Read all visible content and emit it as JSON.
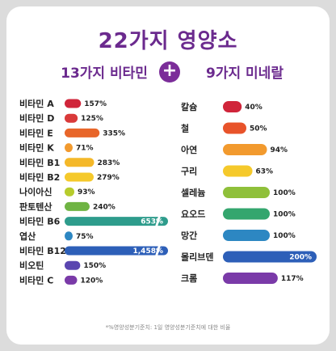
{
  "title": "22가지 영양소",
  "subtitle_left": "13가지 비타민",
  "plus_symbol": "+",
  "subtitle_right": "9가지 미네랄",
  "footnote": "*%영양성분기준치: 1일 영양성분기준치에 대한 비율",
  "chart_data": [
    {
      "type": "bar",
      "orientation": "horizontal",
      "categories": [
        "비타민 A",
        "비타민 D",
        "비타민 E",
        "비타민 K",
        "비타민 B1",
        "비타민 B2",
        "나이아신",
        "판토텐산",
        "비타민 B6",
        "엽산",
        "비타민 B12",
        "비오틴",
        "비타민 C"
      ],
      "values": [
        157,
        125,
        335,
        71,
        283,
        279,
        93,
        240,
        653,
        75,
        1458,
        150,
        120
      ],
      "value_labels": [
        "157%",
        "125%",
        "335%",
        "71%",
        "283%",
        "279%",
        "93%",
        "240%",
        "653%",
        "75%",
        "1,458%",
        "150%",
        "120%"
      ],
      "bar_colors": [
        "#d0253a",
        "#d93a3a",
        "#e8662a",
        "#f29a2e",
        "#f4b829",
        "#f5c92b",
        "#b7cc2c",
        "#6fb443",
        "#2e9c8c",
        "#2d87c2",
        "#2d5fb8",
        "#5a46b0",
        "#7a3aa8"
      ],
      "broken_axis": true,
      "unit": "%"
    },
    {
      "type": "bar",
      "orientation": "horizontal",
      "categories": [
        "칼슘",
        "철",
        "아연",
        "구리",
        "셀레늄",
        "요오드",
        "망간",
        "몰리브덴",
        "크롬"
      ],
      "values": [
        40,
        50,
        94,
        63,
        100,
        100,
        100,
        200,
        117
      ],
      "value_labels": [
        "40%",
        "50%",
        "94%",
        "63%",
        "100%",
        "100%",
        "100%",
        "200%",
        "117%"
      ],
      "bar_colors": [
        "#d0253a",
        "#e8532a",
        "#f29a2e",
        "#f5c92b",
        "#8fc03a",
        "#34a66e",
        "#2d87c2",
        "#2d5fb8",
        "#7a3aa8"
      ],
      "unit": "%"
    }
  ]
}
